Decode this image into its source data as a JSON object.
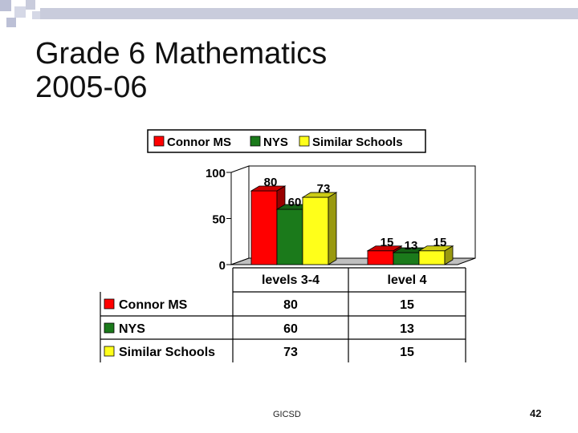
{
  "slide": {
    "title_line1": "Grade 6 Mathematics",
    "title_line2": "2005-06",
    "footer": "GICSD",
    "page_number": "42"
  },
  "colors": {
    "Connor MS": "#ff0000",
    "NYS": "#1b7a1b",
    "Similar Schools": "#ffff1a",
    "deco_square": "#bcc0d6",
    "deco_band": "#c9ccdc"
  },
  "chart_data": {
    "type": "bar",
    "categories": [
      "levels 3-4",
      "level 4"
    ],
    "series": [
      {
        "name": "Connor MS",
        "values": [
          80,
          15
        ]
      },
      {
        "name": "NYS",
        "values": [
          60,
          13
        ]
      },
      {
        "name": "Similar Schools",
        "values": [
          73,
          15
        ]
      }
    ],
    "yticks": [
      "0",
      "50",
      "100"
    ],
    "ylim": [
      0,
      100
    ],
    "legend_position": "top",
    "style": "3d-bar with data table",
    "table": {
      "rows": [
        {
          "label": "Connor MS",
          "values": [
            "80",
            "15"
          ]
        },
        {
          "label": "NYS",
          "values": [
            "60",
            "13"
          ]
        },
        {
          "label": "Similar Schools",
          "values": [
            "73",
            "15"
          ]
        }
      ]
    }
  }
}
